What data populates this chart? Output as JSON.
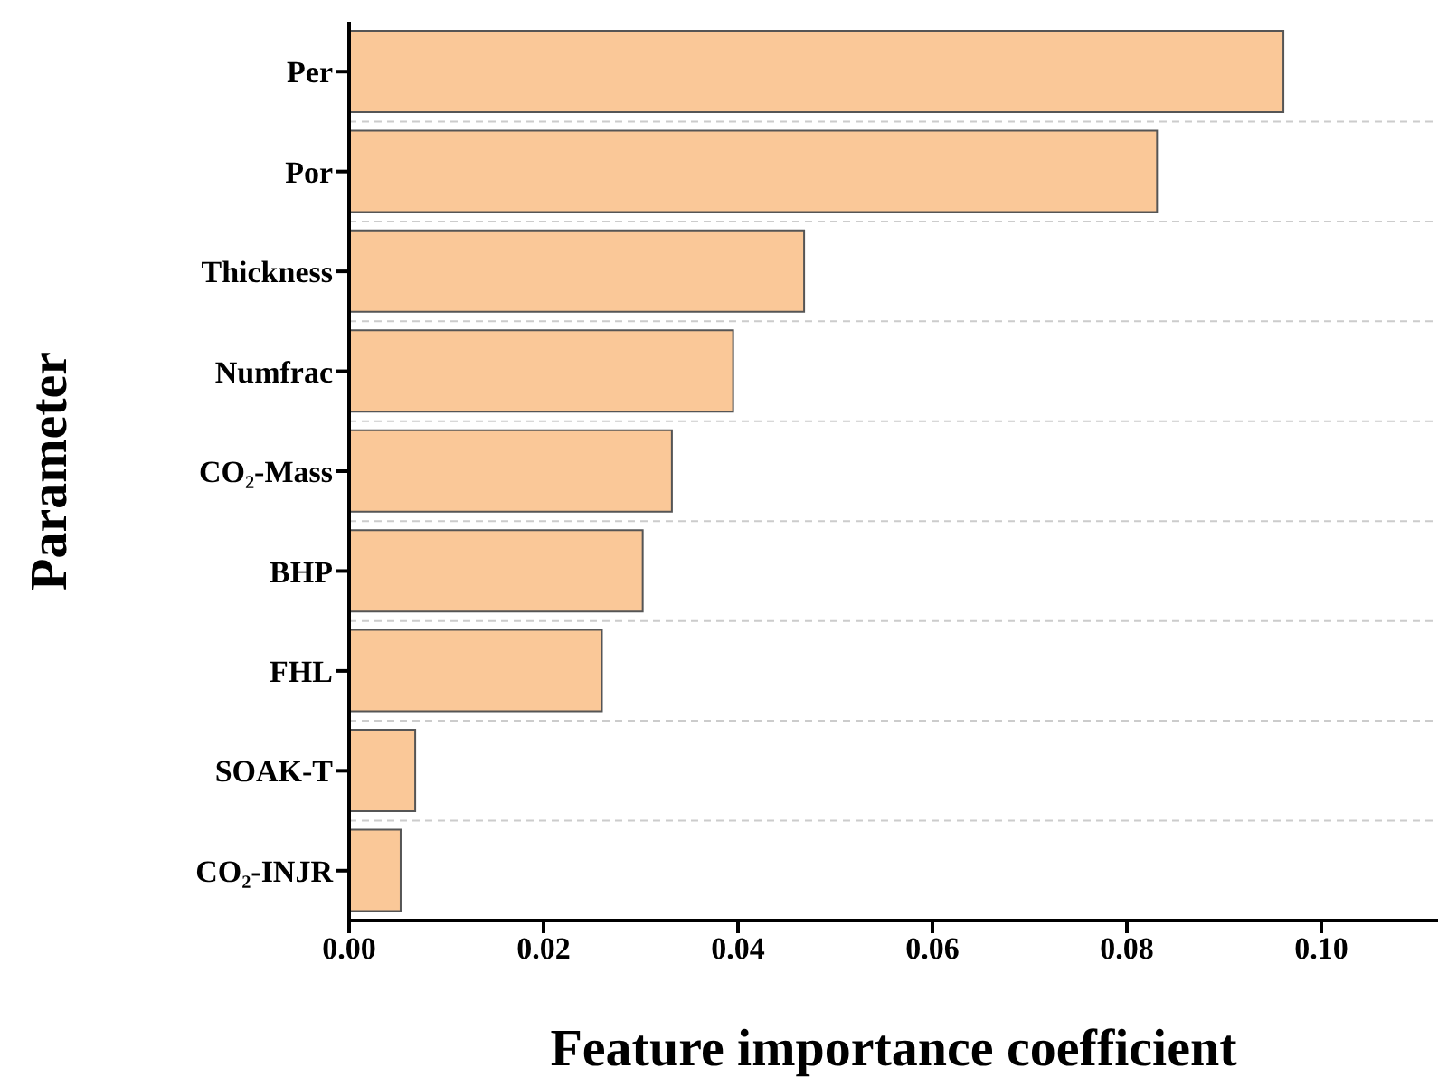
{
  "chart_data": {
    "type": "bar",
    "orientation": "horizontal",
    "xlabel": "Feature importance coefficient",
    "ylabel": "Parameter",
    "categories": [
      "Per",
      "Por",
      "Thickness",
      "Numfrac",
      "CO₂-Mass",
      "BHP",
      "FHL",
      "SOAK-T",
      "CO₂-INJR"
    ],
    "values": [
      0.0961,
      0.0831,
      0.0468,
      0.0395,
      0.0332,
      0.0302,
      0.026,
      0.0068,
      0.0053
    ],
    "color": "#fac898",
    "xlim": [
      0,
      0.112
    ],
    "xticks": [
      {
        "value": 0,
        "label": "0.00"
      },
      {
        "value": 0.02,
        "label": "0.02"
      },
      {
        "value": 0.04,
        "label": "0.04"
      },
      {
        "value": 0.06,
        "label": "0.06"
      },
      {
        "value": 0.08,
        "label": "0.08"
      },
      {
        "value": 0.1,
        "label": "0.10"
      }
    ],
    "grid": "y"
  }
}
